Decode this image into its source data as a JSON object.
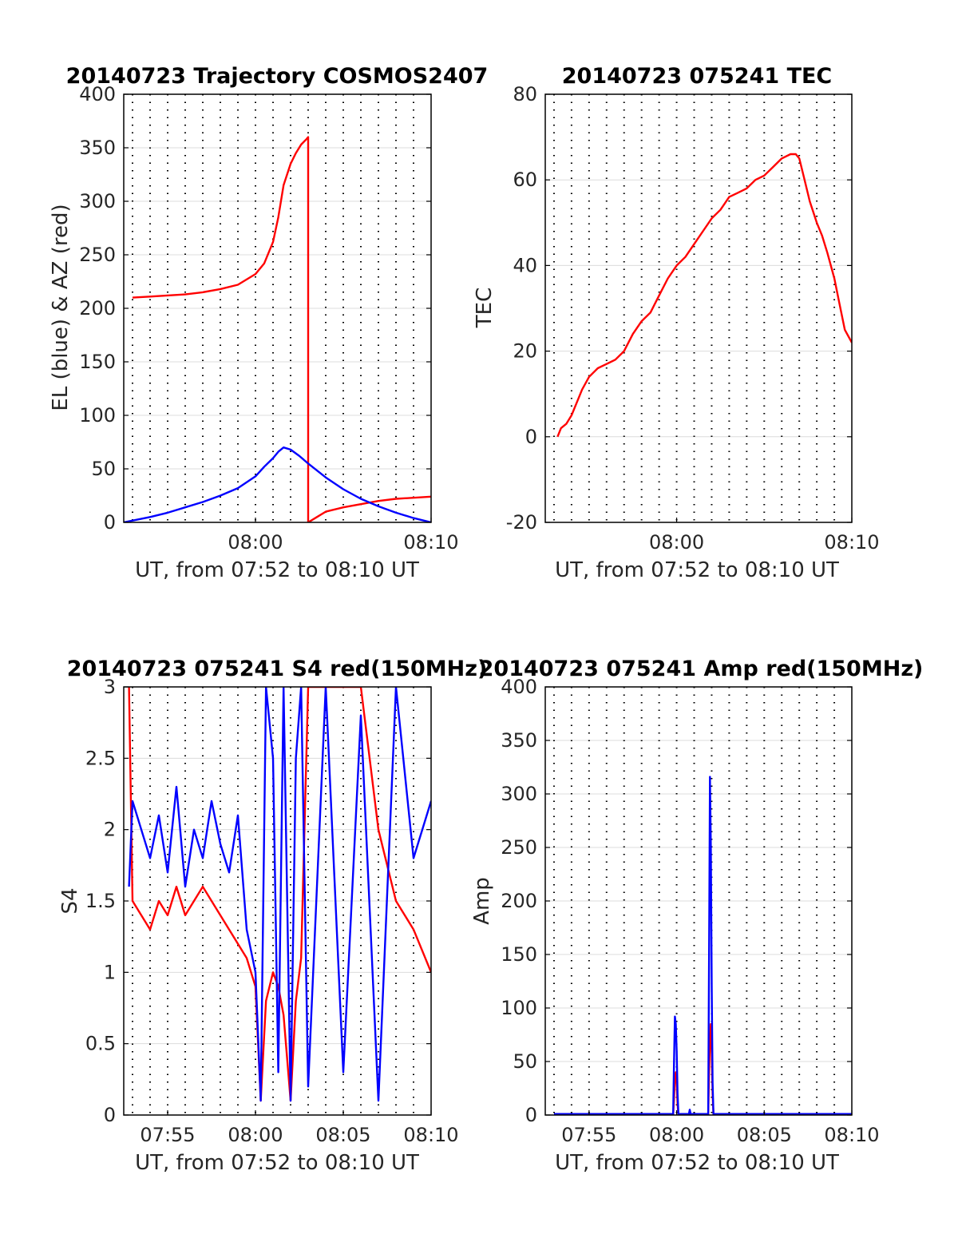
{
  "colors": {
    "el": "#0000ff",
    "az": "#ff0000",
    "grid": "#dcdcdc",
    "axis": "#000000"
  },
  "chart_data": [
    {
      "type": "line",
      "title": "20140723 Trajectory COSMOS2407",
      "xlabel": "UT, from 07:52 to 08:10 UT",
      "ylabel": "EL (blue) & AZ (red)",
      "xlim_minutes": [
        472.5,
        490
      ],
      "ylim": [
        0,
        400
      ],
      "x_ticks": [
        {
          "value": 480,
          "label": "08:00"
        },
        {
          "value": 490,
          "label": "08:10"
        }
      ],
      "y_ticks": [
        0,
        50,
        100,
        150,
        200,
        250,
        300,
        350,
        400
      ],
      "series": [
        {
          "name": "AZ (red)",
          "color": "#ff0000",
          "x": [
            473,
            474,
            475,
            476,
            477,
            478,
            479,
            480,
            480.5,
            481,
            481.3,
            481.6,
            482,
            482.3,
            482.6,
            482.9,
            483,
            483,
            483.5,
            484,
            485,
            486,
            487,
            488,
            489,
            490
          ],
          "y": [
            210,
            211,
            212,
            213,
            215,
            218,
            222,
            232,
            242,
            262,
            285,
            315,
            335,
            345,
            353,
            358,
            360,
            0,
            5,
            10,
            14,
            17,
            20,
            22,
            23,
            24
          ]
        },
        {
          "name": "EL (blue)",
          "color": "#0000ff",
          "x": [
            472.5,
            474,
            475,
            476,
            477,
            478,
            479,
            480,
            480.5,
            481,
            481.3,
            481.6,
            482,
            482.5,
            483,
            484,
            485,
            486,
            487,
            488,
            489,
            490
          ],
          "y": [
            0,
            5,
            9,
            14,
            19,
            25,
            32,
            43,
            52,
            60,
            66,
            70,
            68,
            62,
            55,
            42,
            31,
            22,
            15,
            9,
            4,
            0
          ]
        }
      ]
    },
    {
      "type": "line",
      "title": "20140723 075241 TEC",
      "xlabel": "UT, from 07:52 to 08:10 UT",
      "ylabel": "TEC",
      "xlim_minutes": [
        472.5,
        490
      ],
      "ylim": [
        -20,
        80
      ],
      "x_ticks": [
        {
          "value": 480,
          "label": "08:00"
        },
        {
          "value": 490,
          "label": "08:10"
        }
      ],
      "y_ticks": [
        -20,
        0,
        20,
        40,
        60,
        80
      ],
      "series": [
        {
          "name": "TEC",
          "color": "#ff0000",
          "x": [
            473.2,
            473.4,
            473.7,
            474,
            474.3,
            474.6,
            475,
            475.5,
            476,
            476.5,
            477,
            477.5,
            478,
            478.5,
            479,
            479.5,
            480,
            480.5,
            481,
            481.5,
            482,
            482.5,
            483,
            483.5,
            484,
            484.5,
            485,
            485.5,
            486,
            486.5,
            486.8,
            487,
            487.3,
            487.6,
            488,
            488.3,
            488.6,
            489,
            489.3,
            489.6,
            490
          ],
          "y": [
            0,
            2,
            3,
            5,
            8,
            11,
            14,
            16,
            17,
            18,
            20,
            24,
            27,
            29,
            33,
            37,
            40,
            42,
            45,
            48,
            51,
            53,
            56,
            57,
            58,
            60,
            61,
            63,
            65,
            66,
            66,
            65,
            60,
            55,
            50,
            47,
            43,
            37,
            31,
            25,
            22
          ]
        }
      ]
    },
    {
      "type": "line",
      "title": "20140723 075241 S4 red(150MHz)",
      "xlabel": "UT, from 07:52 to 08:10 UT",
      "ylabel": "S4",
      "xlim_minutes": [
        472.5,
        490
      ],
      "ylim": [
        0,
        3
      ],
      "x_ticks": [
        {
          "value": 475,
          "label": "07:55"
        },
        {
          "value": 480,
          "label": "08:00"
        },
        {
          "value": 485,
          "label": "08:05"
        },
        {
          "value": 490,
          "label": "08:10"
        }
      ],
      "y_ticks": [
        0,
        0.5,
        1,
        1.5,
        2,
        2.5,
        3
      ],
      "series": [
        {
          "name": "red (150MHz)",
          "color": "#ff0000",
          "x": [
            472.8,
            473,
            473.5,
            474,
            474.5,
            475,
            475.5,
            476,
            476.5,
            477,
            477.5,
            478,
            478.5,
            479,
            479.5,
            480,
            480.3,
            480.6,
            481,
            481.3,
            481.6,
            482,
            482.3,
            482.6,
            483,
            484,
            485,
            486,
            487,
            488,
            489,
            490
          ],
          "y": [
            3,
            1.5,
            1.4,
            1.3,
            1.5,
            1.4,
            1.6,
            1.4,
            1.5,
            1.6,
            1.5,
            1.4,
            1.3,
            1.2,
            1.1,
            0.9,
            0.1,
            0.8,
            1.0,
            0.9,
            0.7,
            0.1,
            0.8,
            1.1,
            3,
            3,
            3,
            3,
            2,
            1.5,
            1.3,
            1.0
          ]
        },
        {
          "name": "blue",
          "color": "#0000ff",
          "x": [
            472.8,
            473,
            473.5,
            474,
            474.5,
            475,
            475.5,
            476,
            476.5,
            477,
            477.5,
            478,
            478.5,
            479,
            479.5,
            480,
            480.3,
            480.6,
            481,
            481.3,
            481.6,
            482,
            482.3,
            482.6,
            483,
            484,
            485,
            486,
            487,
            488,
            489,
            490
          ],
          "y": [
            1.6,
            2.2,
            2.0,
            1.8,
            2.1,
            1.7,
            2.3,
            1.6,
            2.0,
            1.8,
            2.2,
            1.9,
            1.7,
            2.1,
            1.3,
            1.0,
            0.1,
            3,
            2.5,
            0.3,
            3,
            0.1,
            2.5,
            3,
            0.2,
            3,
            0.3,
            2.8,
            0.1,
            3,
            1.8,
            2.2
          ]
        }
      ]
    },
    {
      "type": "line",
      "title": "20140723 075241 Amp red(150MHz)",
      "xlabel": "UT, from 07:52 to 08:10 UT",
      "ylabel": "Amp",
      "xlim_minutes": [
        472.5,
        490
      ],
      "ylim": [
        0,
        400
      ],
      "x_ticks": [
        {
          "value": 475,
          "label": "07:55"
        },
        {
          "value": 480,
          "label": "08:00"
        },
        {
          "value": 485,
          "label": "08:05"
        },
        {
          "value": 490,
          "label": "08:10"
        }
      ],
      "y_ticks": [
        0,
        50,
        100,
        150,
        200,
        250,
        300,
        350,
        400
      ],
      "series": [
        {
          "name": "red (150MHz)",
          "color": "#ff0000",
          "x": [
            473,
            479.8,
            479.85,
            479.9,
            479.95,
            480,
            480.05,
            480.1,
            481.8,
            481.85,
            481.9,
            481.95,
            482,
            482.05,
            482.1,
            490
          ],
          "y": [
            0,
            0,
            15,
            35,
            40,
            30,
            10,
            0,
            0,
            40,
            70,
            85,
            60,
            20,
            0,
            0
          ]
        },
        {
          "name": "blue",
          "color": "#0000ff",
          "x": [
            473,
            479.8,
            479.85,
            479.9,
            479.95,
            480,
            480.05,
            480.1,
            480.7,
            480.75,
            480.8,
            481.8,
            481.85,
            481.9,
            481.95,
            482,
            482.05,
            482.1,
            490
          ],
          "y": [
            1,
            1,
            50,
            92,
            85,
            60,
            20,
            1,
            1,
            5,
            1,
            1,
            150,
            316,
            250,
            120,
            30,
            1,
            1
          ]
        }
      ]
    }
  ]
}
